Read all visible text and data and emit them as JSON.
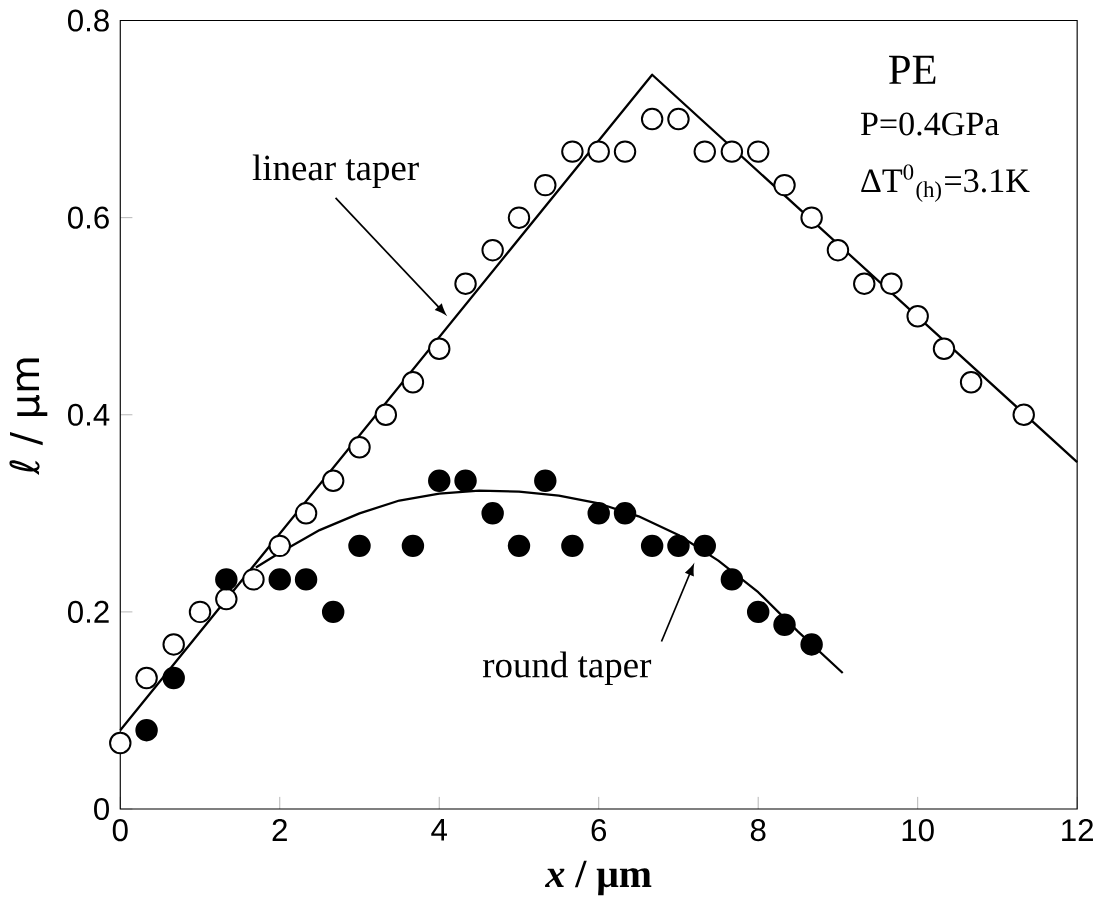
{
  "chart_data": {
    "type": "scatter",
    "xlabel": "*x* / μm",
    "ylabel": "ℓ / μm",
    "xlim": [
      0,
      12
    ],
    "ylim": [
      0,
      0.8
    ],
    "xticks": [
      0,
      2,
      4,
      6,
      8,
      10,
      12
    ],
    "yticks": [
      0,
      0.2,
      0.4,
      0.6,
      0.8
    ],
    "grid": false,
    "series": [
      {
        "marker": "circle",
        "color": "#000000",
        "x": [
          0,
          0.33,
          0.67,
          1,
          1.33,
          1.67,
          2,
          2.33,
          2.67,
          3,
          3.33,
          3.67,
          4,
          4.33,
          4.67,
          5,
          5.33,
          5.67,
          6,
          6.33,
          6.67,
          7,
          7.33,
          7.67,
          8,
          8.33,
          8.67,
          9,
          9.33,
          9.67,
          10,
          10.33,
          10.67,
          11.33
        ],
        "values": [
          0.067,
          0.133,
          0.167,
          0.2,
          0.213,
          0.233,
          0.267,
          0.3,
          0.333,
          0.367,
          0.4,
          0.433,
          0.467,
          0.533,
          0.567,
          0.6,
          0.633,
          0.667,
          0.667,
          0.667,
          0.7,
          0.7,
          0.667,
          0.667,
          0.667,
          0.633,
          0.6,
          0.567,
          0.533,
          0.533,
          0.5,
          0.467,
          0.433,
          0.4
        ]
      },
      {
        "marker": "circle",
        "color": "#000000",
        "x": [
          0.33,
          0.67,
          1.33,
          2,
          2.33,
          2.67,
          3,
          3.67,
          4,
          4.33,
          4.67,
          5,
          5.33,
          5.67,
          6,
          6.33,
          6.67,
          7,
          7.33,
          7.67,
          8,
          8.33,
          8.67
        ],
        "values": [
          0.08,
          0.133,
          0.233,
          0.233,
          0.233,
          0.2,
          0.267,
          0.267,
          0.333,
          0.333,
          0.3,
          0.267,
          0.333,
          0.267,
          0.3,
          0.3,
          0.267,
          0.267,
          0.267,
          0.233,
          0.2,
          0.187,
          0.167
        ]
      },
      {
        "type": "line",
        "marker": "none",
        "color": "#000000",
        "x": [
          0,
          6.67,
          12
        ],
        "values": [
          0.08,
          0.745,
          0.352
        ]
      },
      {
        "type": "line",
        "marker": "none",
        "color": "#000000",
        "x": [
          1.7,
          2,
          2.5,
          3,
          3.5,
          4,
          4.5,
          5,
          5.5,
          6,
          6.5,
          7,
          7.5,
          8,
          8.5,
          9.06
        ],
        "values": [
          0.245,
          0.26,
          0.283,
          0.3,
          0.313,
          0.32,
          0.323,
          0.322,
          0.318,
          0.31,
          0.297,
          0.278,
          0.252,
          0.22,
          0.18,
          0.138
        ]
      }
    ],
    "annotations": [
      {
        "text": "linear taper",
        "x": 4.1,
        "y": 0.5
      },
      {
        "text": "round taper",
        "x": 7.2,
        "y": 0.25
      },
      "PE",
      "P=0.4GPa",
      "ΔT$^{0}$$_{(h)}$=3.1K"
    ]
  }
}
